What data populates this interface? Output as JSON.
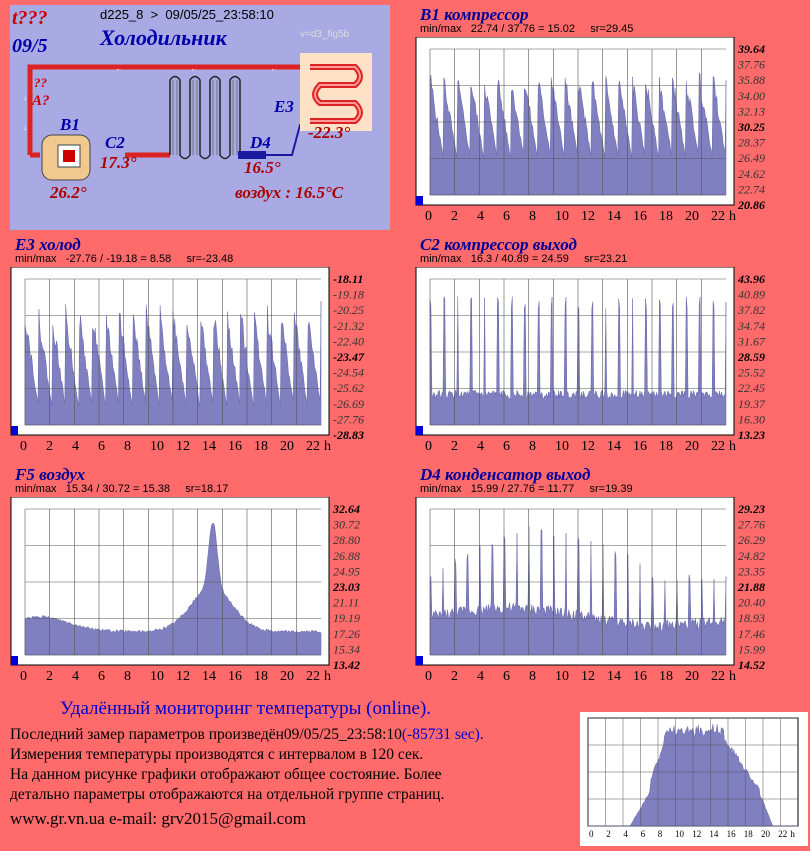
{
  "header": {
    "id_line": "d225_8  >  09/05/25_23:58:10",
    "warn_date": "t???",
    "date_short": "09/5",
    "title": "Холодильник",
    "version": "v=d3_fig5b"
  },
  "diagram": {
    "q_mark": "??",
    "a_label": "A?",
    "b1_label": "B1",
    "c2_label": "C2",
    "d4_label": "D4",
    "e3_label": "E3",
    "b1_value": "26.2°",
    "c2_value": "17.3°",
    "d4_value": "16.5°",
    "e3_value": "-22.3°",
    "air_text": "воздух : 16.5°C",
    "colors": {
      "hot_pipe": "#dd2222",
      "cold_pipe": "#1a1aa0",
      "background": "#a9a9e3"
    }
  },
  "charts": [
    {
      "id": "b1",
      "title": "B1 компрессор",
      "minmax": "min/max   22.74 / 37.76 = 15.02     sr=29.45",
      "ticks": [
        "39.64",
        "37.76",
        "35.88",
        "34.00",
        "32.13",
        "30.25",
        "28.37",
        "26.49",
        "24.62",
        "22.74",
        "20.86"
      ],
      "mid_index": 5,
      "pattern": "saw",
      "base": 0.25,
      "peak": 0.88
    },
    {
      "id": "e3",
      "title": "E3 холод",
      "minmax": "min/max   -27.76 / -19.18 = 8.58     sr=-23.48",
      "ticks": [
        "-18.11",
        "-19.18",
        "-20.25",
        "-21.32",
        "-22.40",
        "-23.47",
        "-24.54",
        "-25.62",
        "-26.69",
        "-27.76",
        "-28.83"
      ],
      "mid_index": 5,
      "pattern": "saw",
      "base": 0.12,
      "peak": 0.85
    },
    {
      "id": "c2",
      "title": "C2 компрессор выход",
      "minmax": "min/max   16.3 / 40.89 = 24.59     sr=23.21",
      "ticks": [
        "43.96",
        "40.89",
        "37.82",
        "34.74",
        "31.67",
        "28.59",
        "25.52",
        "22.45",
        "19.37",
        "16.30",
        "13.23"
      ],
      "mid_index": 5,
      "pattern": "spike",
      "base": 0.18,
      "peak": 0.88
    },
    {
      "id": "f5",
      "title": "F5 воздух",
      "minmax": "min/max   15.34 / 30.72 = 15.38     sr=18.17",
      "ticks": [
        "32.64",
        "30.72",
        "28.80",
        "26.88",
        "24.95",
        "23.03",
        "21.11",
        "19.19",
        "17.26",
        "15.34",
        "13.42"
      ],
      "mid_index": 5,
      "pattern": "hill",
      "base": 0.15,
      "peak": 0.9
    },
    {
      "id": "d4",
      "title": "D4 конденсатор выход",
      "minmax": "min/max   15.99 / 27.76 = 11.77     sr=19.39",
      "ticks": [
        "29.23",
        "27.76",
        "26.29",
        "24.82",
        "23.35",
        "21.88",
        "20.40",
        "18.93",
        "17.46",
        "15.99",
        "14.52"
      ],
      "mid_index": 5,
      "pattern": "spike2",
      "base": 0.22,
      "peak": 0.75
    }
  ],
  "x_ticks": [
    "0",
    "2",
    "4",
    "6",
    "8",
    "10",
    "12",
    "14",
    "16",
    "18",
    "20",
    "22"
  ],
  "x_unit": "h",
  "footer": {
    "heading": "Удалённый мониторинг температуры (online).",
    "line1a": "Последний замер параметров произведён09/05/25_23:58:10",
    "line1b": "(-85731 sec).",
    "line2": "Измерения температуры  производятся с интервалом в 120 сек.",
    "line3": "На данном рисунке графики отображают общее состояние. Более",
    "line4": "детально параметры отображаются на отдельной группе страниц.",
    "line5": "www.gr.vn.ua     e-mail: grv2015@gmail.com"
  },
  "mini_chart": {
    "x_ticks": [
      "0",
      "2",
      "4",
      "6",
      "8",
      "10",
      "12",
      "14",
      "16",
      "18",
      "20",
      "22"
    ],
    "x_unit": "h"
  }
}
